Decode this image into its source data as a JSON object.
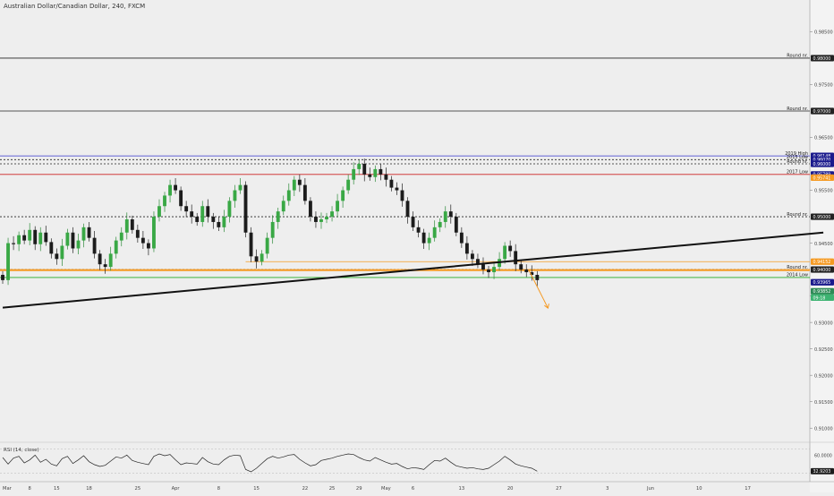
{
  "title": "Australian Dollar/Canadian Dollar, 240, FXCM",
  "chart_data": {
    "type": "candlestick",
    "symbol_label": "Australian Dollar/Canadian Dollar, 240, FXCM",
    "price_axis": {
      "range": [
        0.908,
        0.991
      ],
      "ticks": [
        "0.98500",
        "0.97500",
        "0.96500",
        "0.95500",
        "0.94500",
        "0.93500",
        "0.93000",
        "0.92500",
        "0.92000",
        "0.91500",
        "0.91000"
      ]
    },
    "x_axis": {
      "labels": [
        {
          "text": "Mar",
          "idx": 0
        },
        {
          "text": "8",
          "idx": 5
        },
        {
          "text": "15",
          "idx": 10
        },
        {
          "text": "18",
          "idx": 16
        },
        {
          "text": "25",
          "idx": 25
        },
        {
          "text": "Apr",
          "idx": 32
        },
        {
          "text": "8",
          "idx": 40
        },
        {
          "text": "15",
          "idx": 47
        },
        {
          "text": "22",
          "idx": 56
        },
        {
          "text": "25",
          "idx": 61
        },
        {
          "text": "29",
          "idx": 66
        },
        {
          "text": "May",
          "idx": 71
        },
        {
          "text": "6",
          "idx": 76
        },
        {
          "text": "13",
          "idx": 85
        },
        {
          "text": "20",
          "idx": 94
        },
        {
          "text": "27",
          "idx": 103
        },
        {
          "text": "3",
          "idx": 112
        },
        {
          "text": "Jun",
          "idx": 120
        },
        {
          "text": "10",
          "idx": 129
        },
        {
          "text": "17",
          "idx": 138
        }
      ]
    },
    "levels": [
      {
        "price": 0.98,
        "style": "solid",
        "color": "#222222",
        "label": "Round nr.",
        "badge": "0.98000",
        "badge_color": "#222222"
      },
      {
        "price": 0.97,
        "style": "solid",
        "color": "#222222",
        "label": "Round nr.",
        "badge": "0.97000",
        "badge_color": "#222222"
      },
      {
        "price": 0.9615,
        "style": "solid",
        "color": "#3333cc",
        "label": "2019 High",
        "badge": "0.96148",
        "badge_color": "#1a1a8c"
      },
      {
        "price": 0.9608,
        "style": "dotted",
        "color": "#222222",
        "label": "2015 Low",
        "badge": "0.96070",
        "badge_color": "#1a1a8c"
      },
      {
        "price": 0.96,
        "style": "dotted",
        "color": "#222222",
        "label": "Round nr.",
        "badge": "0.96000",
        "badge_color": "#1a1a8c"
      },
      {
        "price": 0.958,
        "style": "solid",
        "color": "#cc2222",
        "label": "2017 Low",
        "badge": "0.95789",
        "badge_color": "#1a1a8c"
      },
      {
        "price": 0.9574,
        "style": "none",
        "color": "#f59a23",
        "label": "",
        "badge": "0.95741",
        "badge_color": "#f59a23"
      },
      {
        "price": 0.95,
        "style": "dotted",
        "color": "#222222",
        "label": "Round nr.",
        "badge": "0.95000",
        "badge_color": "#222222"
      },
      {
        "price": 0.9415,
        "style": "solid",
        "color": "#f59a23",
        "label": "",
        "badge": "0.94152",
        "badge_color": "#f59a23"
      },
      {
        "price": 0.94,
        "style": "dotted",
        "color": "#222222",
        "label": "Round nr.",
        "badge": "0.94000",
        "badge_color": "#222222"
      },
      {
        "price": 0.9399,
        "style": "thick",
        "color": "#f59a23",
        "label": "",
        "badge": "",
        "badge_color": ""
      },
      {
        "price": 0.9385,
        "style": "solid",
        "color": "#22aa22",
        "label": "2014 Low",
        "badge": "",
        "badge_color": ""
      }
    ],
    "price_badges": [
      {
        "text": "0.93965",
        "price": 0.9376,
        "color": "#1a1a8c"
      },
      {
        "text": "0.93852",
        "price": 0.9359,
        "color": "#2e8b57"
      },
      {
        "text": "09:18",
        "price": 0.9347,
        "color": "#3cb371"
      }
    ],
    "trendline": {
      "from": {
        "idx": 0,
        "price": 0.9328
      },
      "to": {
        "idx": 152,
        "price": 0.947
      },
      "color": "#111111"
    },
    "forecast_arrow": {
      "from": {
        "idx": 97.5,
        "price": 0.9398
      },
      "to": {
        "idx": 101,
        "price": 0.9327
      },
      "color": "#f59a23"
    },
    "candles_close": [
      0.938,
      0.945,
      0.9448,
      0.9465,
      0.9455,
      0.9475,
      0.9448,
      0.947,
      0.9452,
      0.943,
      0.942,
      0.9445,
      0.947,
      0.944,
      0.9455,
      0.948,
      0.946,
      0.943,
      0.941,
      0.9405,
      0.943,
      0.9455,
      0.947,
      0.9495,
      0.9475,
      0.946,
      0.945,
      0.944,
      0.95,
      0.952,
      0.954,
      0.956,
      0.955,
      0.952,
      0.951,
      0.95,
      0.949,
      0.952,
      0.95,
      0.949,
      0.948,
      0.95,
      0.953,
      0.955,
      0.956,
      0.947,
      0.9425,
      0.9415,
      0.943,
      0.946,
      0.949,
      0.951,
      0.953,
      0.955,
      0.957,
      0.956,
      0.953,
      0.95,
      0.949,
      0.9495,
      0.95,
      0.951,
      0.953,
      0.955,
      0.957,
      0.959,
      0.96,
      0.958,
      0.9575,
      0.959,
      0.958,
      0.957,
      0.9555,
      0.955,
      0.953,
      0.95,
      0.948,
      0.947,
      0.945,
      0.946,
      0.948,
      0.949,
      0.951,
      0.95,
      0.947,
      0.945,
      0.943,
      0.942,
      0.941,
      0.94,
      0.9395,
      0.9405,
      0.942,
      0.9445,
      0.9435,
      0.941,
      0.94,
      0.9395,
      0.939,
      0.938
    ],
    "rsi": {
      "label": "RSI (14, close)",
      "range": [
        20,
        80
      ],
      "ticks": [
        "60.0000",
        "32.9203"
      ],
      "values": [
        56,
        45,
        55,
        58,
        47,
        52,
        60,
        48,
        53,
        45,
        42,
        54,
        58,
        46,
        52,
        59,
        49,
        44,
        41,
        43,
        50,
        57,
        55,
        60,
        51,
        48,
        46,
        44,
        58,
        62,
        59,
        61,
        52,
        44,
        47,
        46,
        45,
        56,
        49,
        45,
        44,
        52,
        58,
        60,
        59,
        36,
        32,
        38,
        46,
        54,
        58,
        55,
        57,
        60,
        61,
        53,
        47,
        42,
        44,
        51,
        53,
        55,
        58,
        60,
        62,
        61,
        56,
        52,
        50,
        56,
        52,
        48,
        45,
        46,
        41,
        37,
        39,
        38,
        36,
        44,
        51,
        50,
        55,
        48,
        42,
        40,
        38,
        39,
        37,
        36,
        38,
        44,
        50,
        58,
        52,
        45,
        42,
        40,
        38,
        33
      ]
    }
  }
}
